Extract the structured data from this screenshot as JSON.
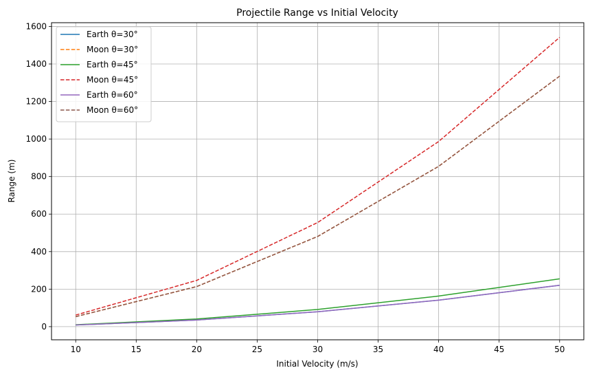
{
  "chart_data": {
    "type": "line",
    "title": "Projectile Range vs Initial Velocity",
    "xlabel": "Initial Velocity (m/s)",
    "ylabel": "Range (m)",
    "xlim": [
      8,
      52
    ],
    "ylim": [
      -70,
      1620
    ],
    "x_ticks": [
      10,
      15,
      20,
      25,
      30,
      35,
      40,
      45,
      50
    ],
    "y_ticks": [
      0,
      200,
      400,
      600,
      800,
      1000,
      1200,
      1400,
      1600
    ],
    "grid": true,
    "legend_position": "upper-left",
    "x": [
      10,
      20,
      30,
      40,
      50
    ],
    "series": [
      {
        "name": "Earth θ=30°",
        "values": [
          8.8,
          35.3,
          79.5,
          141.3,
          220.7
        ],
        "color": "#1f77b4",
        "style": "solid"
      },
      {
        "name": "Moon θ=30°",
        "values": [
          53.4,
          213.6,
          480.7,
          854.5,
          1335.2
        ],
        "color": "#ff7f0e",
        "style": "dashed"
      },
      {
        "name": "Earth θ=45°",
        "values": [
          10.2,
          40.8,
          91.7,
          163.1,
          254.8
        ],
        "color": "#2ca02c",
        "style": "solid"
      },
      {
        "name": "Moon θ=45°",
        "values": [
          61.7,
          246.6,
          555.0,
          986.7,
          1541.8
        ],
        "color": "#d62728",
        "style": "dashed"
      },
      {
        "name": "Earth θ=60°",
        "values": [
          8.8,
          35.3,
          79.5,
          141.3,
          220.7
        ],
        "color": "#9467bd",
        "style": "solid"
      },
      {
        "name": "Moon θ=60°",
        "values": [
          53.4,
          213.6,
          480.7,
          854.5,
          1335.2
        ],
        "color": "#8c564b",
        "style": "dashed"
      }
    ]
  }
}
